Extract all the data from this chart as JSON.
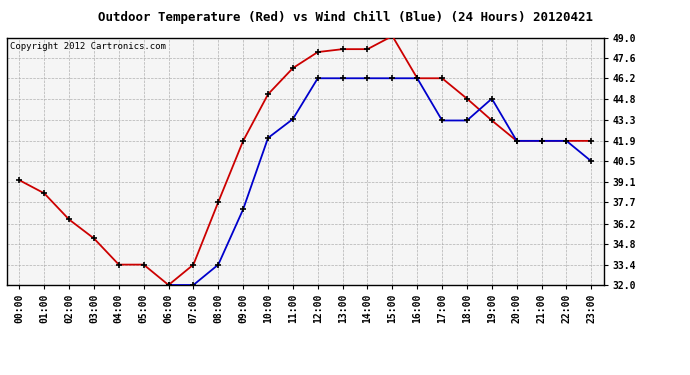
{
  "title": "Outdoor Temperature (Red) vs Wind Chill (Blue) (24 Hours) 20120421",
  "copyright": "Copyright 2012 Cartronics.com",
  "hours": [
    "00:00",
    "01:00",
    "02:00",
    "03:00",
    "04:00",
    "05:00",
    "06:00",
    "07:00",
    "08:00",
    "09:00",
    "10:00",
    "11:00",
    "12:00",
    "13:00",
    "14:00",
    "15:00",
    "16:00",
    "17:00",
    "18:00",
    "19:00",
    "20:00",
    "21:00",
    "22:00",
    "23:00"
  ],
  "temp_red": [
    39.2,
    38.3,
    36.5,
    35.2,
    33.4,
    33.4,
    32.0,
    33.4,
    37.7,
    41.9,
    45.1,
    46.9,
    48.0,
    48.2,
    48.2,
    49.1,
    46.2,
    46.2,
    44.8,
    43.3,
    41.9,
    41.9,
    41.9,
    41.9
  ],
  "wind_chill_blue": [
    null,
    null,
    null,
    null,
    null,
    null,
    32.0,
    32.0,
    33.4,
    37.2,
    42.1,
    43.4,
    46.2,
    46.2,
    46.2,
    46.2,
    46.2,
    43.3,
    43.3,
    44.8,
    41.9,
    41.9,
    41.9,
    40.5
  ],
  "ylim": [
    32.0,
    49.0
  ],
  "ytick_vals": [
    32.0,
    33.4,
    34.8,
    36.2,
    37.7,
    39.1,
    40.5,
    41.9,
    43.3,
    44.8,
    46.2,
    47.6,
    49.0
  ],
  "ytick_labels": [
    "32.0",
    "33.4",
    "34.8",
    "36.2",
    "37.7",
    "39.1",
    "40.5",
    "41.9",
    "43.3",
    "44.8",
    "46.2",
    "47.6",
    "49.0"
  ],
  "bg_color": "#ffffff",
  "plot_bg_color": "#f5f5f5",
  "grid_color": "#aaaaaa",
  "red_color": "#cc0000",
  "blue_color": "#0000cc",
  "title_color": "#000000",
  "copyright_color": "#000000",
  "linewidth": 1.3,
  "markersize": 4,
  "title_fontsize": 9,
  "tick_fontsize": 7,
  "copyright_fontsize": 6.5
}
